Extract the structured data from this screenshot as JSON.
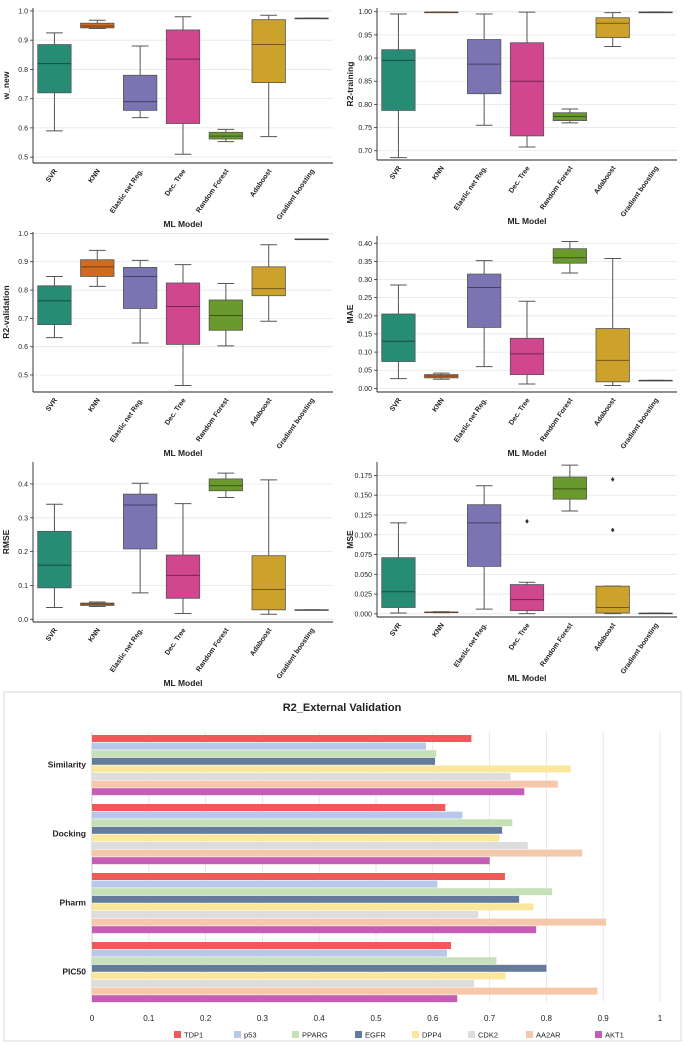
{
  "colors": {
    "SVR": "#268c76",
    "KNN": "#cf6a22",
    "Elastic net Reg.": "#7b74b3",
    "Dec. Tree": "#d0478f",
    "Random Forest": "#6a9a2d",
    "Adaboost": "#cca22b",
    "Gradient boosting": "#7a7a7a",
    "TDP1": "#ec5a5a",
    "p53": "#b9c7ea",
    "PPARG": "#c6e1b8",
    "EGFR": "#657b9b",
    "DPP4": "#fbe79c",
    "CDK2": "#dddddd",
    "AA2AR": "#f5c8ab",
    "AKT1": "#c55cb6"
  },
  "chart_data": [
    {
      "type": "box",
      "title": "",
      "xlabel": "ML Model",
      "ylabel": "w_new",
      "ylim": [
        0.48,
        1.01
      ],
      "yticks": [
        "0.5",
        "0.6",
        "0.7",
        "0.8",
        "0.9",
        "1.0"
      ],
      "categories": [
        "SVR",
        "KNN",
        "Elastic net Reg.",
        "Dec. Tree",
        "Random Forest",
        "Adaboost",
        "Gradient boosting"
      ],
      "boxes": [
        {
          "min": 0.59,
          "q1": 0.72,
          "median": 0.82,
          "q3": 0.885,
          "max": 0.925,
          "outliers": []
        },
        {
          "min": 0.94,
          "q1": 0.942,
          "median": 0.948,
          "q3": 0.958,
          "max": 0.968,
          "outliers": []
        },
        {
          "min": 0.635,
          "q1": 0.66,
          "median": 0.69,
          "q3": 0.78,
          "max": 0.88,
          "outliers": []
        },
        {
          "min": 0.51,
          "q1": 0.615,
          "median": 0.835,
          "q3": 0.935,
          "max": 0.98,
          "outliers": []
        },
        {
          "min": 0.553,
          "q1": 0.562,
          "median": 0.572,
          "q3": 0.585,
          "max": 0.595,
          "outliers": []
        },
        {
          "min": 0.57,
          "q1": 0.755,
          "median": 0.885,
          "q3": 0.97,
          "max": 0.985,
          "outliers": []
        },
        {
          "min": 0.975,
          "q1": 0.975,
          "median": 0.975,
          "q3": 0.975,
          "max": 0.975,
          "outliers": []
        }
      ]
    },
    {
      "type": "box",
      "title": "",
      "xlabel": "ML Model",
      "ylabel": "R2-training",
      "ylim": [
        0.68,
        1.008
      ],
      "yticks": [
        "0.70",
        "0.75",
        "0.80",
        "0.85",
        "0.90",
        "0.95",
        "1.00"
      ],
      "categories": [
        "SVR",
        "KNN",
        "Elastic net Reg.",
        "Dec. Tree",
        "Random Forest",
        "Adaboost",
        "Gradient boosting"
      ],
      "boxes": [
        {
          "min": 0.685,
          "q1": 0.787,
          "median": 0.895,
          "q3": 0.918,
          "max": 0.995,
          "outliers": []
        },
        {
          "min": 0.999,
          "q1": 0.999,
          "median": 0.999,
          "q3": 0.999,
          "max": 0.999,
          "outliers": []
        },
        {
          "min": 0.755,
          "q1": 0.823,
          "median": 0.887,
          "q3": 0.94,
          "max": 0.995,
          "outliers": []
        },
        {
          "min": 0.708,
          "q1": 0.732,
          "median": 0.85,
          "q3": 0.933,
          "max": 0.999,
          "outliers": []
        },
        {
          "min": 0.76,
          "q1": 0.765,
          "median": 0.774,
          "q3": 0.782,
          "max": 0.79,
          "outliers": []
        },
        {
          "min": 0.925,
          "q1": 0.944,
          "median": 0.975,
          "q3": 0.987,
          "max": 0.998,
          "outliers": []
        },
        {
          "min": 0.999,
          "q1": 0.999,
          "median": 0.999,
          "q3": 0.999,
          "max": 0.999,
          "outliers": []
        }
      ]
    },
    {
      "type": "box",
      "title": "",
      "xlabel": "ML Model",
      "ylabel": "R2-validation",
      "ylim": [
        0.44,
        1.005
      ],
      "yticks": [
        "0.5",
        "0.6",
        "0.7",
        "0.8",
        "0.9",
        "1.0"
      ],
      "categories": [
        "SVR",
        "KNN",
        "Elastic net Reg.",
        "Dec. Tree",
        "Random Forest",
        "Adaboost",
        "Gradient boosting"
      ],
      "boxes": [
        {
          "min": 0.632,
          "q1": 0.678,
          "median": 0.762,
          "q3": 0.815,
          "max": 0.848,
          "outliers": []
        },
        {
          "min": 0.813,
          "q1": 0.848,
          "median": 0.882,
          "q3": 0.907,
          "max": 0.94,
          "outliers": []
        },
        {
          "min": 0.613,
          "q1": 0.735,
          "median": 0.848,
          "q3": 0.88,
          "max": 0.905,
          "outliers": []
        },
        {
          "min": 0.463,
          "q1": 0.608,
          "median": 0.742,
          "q3": 0.825,
          "max": 0.89,
          "outliers": []
        },
        {
          "min": 0.603,
          "q1": 0.658,
          "median": 0.71,
          "q3": 0.765,
          "max": 0.823,
          "outliers": []
        },
        {
          "min": 0.69,
          "q1": 0.78,
          "median": 0.805,
          "q3": 0.882,
          "max": 0.96,
          "outliers": []
        },
        {
          "min": 0.98,
          "q1": 0.98,
          "median": 0.98,
          "q3": 0.98,
          "max": 0.98,
          "outliers": []
        }
      ]
    },
    {
      "type": "box",
      "title": "",
      "xlabel": "ML Model",
      "ylabel": "MAE",
      "ylim": [
        -0.01,
        0.42
      ],
      "yticks": [
        "0.00",
        "0.05",
        "0.10",
        "0.15",
        "0.20",
        "0.25",
        "0.30",
        "0.35",
        "0.40"
      ],
      "categories": [
        "SVR",
        "KNN",
        "Elastic net Reg.",
        "Dec. Tree",
        "Random Forest",
        "Adaboost",
        "Gradient boosting"
      ],
      "boxes": [
        {
          "min": 0.027,
          "q1": 0.074,
          "median": 0.13,
          "q3": 0.205,
          "max": 0.285,
          "outliers": []
        },
        {
          "min": 0.025,
          "q1": 0.029,
          "median": 0.034,
          "q3": 0.038,
          "max": 0.042,
          "outliers": []
        },
        {
          "min": 0.06,
          "q1": 0.168,
          "median": 0.278,
          "q3": 0.315,
          "max": 0.352,
          "outliers": []
        },
        {
          "min": 0.012,
          "q1": 0.038,
          "median": 0.095,
          "q3": 0.138,
          "max": 0.24,
          "outliers": []
        },
        {
          "min": 0.318,
          "q1": 0.345,
          "median": 0.36,
          "q3": 0.385,
          "max": 0.405,
          "outliers": []
        },
        {
          "min": 0.008,
          "q1": 0.018,
          "median": 0.077,
          "q3": 0.165,
          "max": 0.358,
          "outliers": []
        },
        {
          "min": 0.022,
          "q1": 0.022,
          "median": 0.022,
          "q3": 0.022,
          "max": 0.022,
          "outliers": []
        }
      ]
    },
    {
      "type": "box",
      "title": "",
      "xlabel": "ML Model",
      "ylabel": "RMSE",
      "ylim": [
        -0.008,
        0.465
      ],
      "yticks": [
        "0.0",
        "0.1",
        "0.2",
        "0.3",
        "0.4"
      ],
      "categories": [
        "SVR",
        "KNN",
        "Elastic net Reg.",
        "Dec. Tree",
        "Random Forest",
        "Adaboost",
        "Gradient boosting"
      ],
      "boxes": [
        {
          "min": 0.035,
          "q1": 0.093,
          "median": 0.16,
          "q3": 0.26,
          "max": 0.34,
          "outliers": []
        },
        {
          "min": 0.038,
          "q1": 0.041,
          "median": 0.045,
          "q3": 0.048,
          "max": 0.051,
          "outliers": []
        },
        {
          "min": 0.078,
          "q1": 0.208,
          "median": 0.338,
          "q3": 0.37,
          "max": 0.402,
          "outliers": []
        },
        {
          "min": 0.017,
          "q1": 0.062,
          "median": 0.13,
          "q3": 0.19,
          "max": 0.342,
          "outliers": []
        },
        {
          "min": 0.36,
          "q1": 0.38,
          "median": 0.395,
          "q3": 0.415,
          "max": 0.432,
          "outliers": []
        },
        {
          "min": 0.015,
          "q1": 0.028,
          "median": 0.088,
          "q3": 0.188,
          "max": 0.412,
          "outliers": []
        },
        {
          "min": 0.028,
          "q1": 0.028,
          "median": 0.028,
          "q3": 0.028,
          "max": 0.028,
          "outliers": []
        }
      ]
    },
    {
      "type": "box",
      "title": "",
      "xlabel": "ML Model",
      "ylabel": "MSE",
      "ylim": [
        -0.004,
        0.192
      ],
      "yticks": [
        "0.000",
        "0.025",
        "0.050",
        "0.075",
        "0.100",
        "0.125",
        "0.150",
        "0.175"
      ],
      "categories": [
        "SVR",
        "KNN",
        "Elastic net Reg.",
        "Dec. Tree",
        "Random Forest",
        "Adaboost",
        "Gradient boosting"
      ],
      "boxes": [
        {
          "min": 0.001,
          "q1": 0.008,
          "median": 0.028,
          "q3": 0.071,
          "max": 0.115,
          "outliers": []
        },
        {
          "min": 0.0015,
          "q1": 0.0017,
          "median": 0.002,
          "q3": 0.0023,
          "max": 0.0026,
          "outliers": []
        },
        {
          "min": 0.006,
          "q1": 0.06,
          "median": 0.115,
          "q3": 0.138,
          "max": 0.162,
          "outliers": []
        },
        {
          "min": 0.0003,
          "q1": 0.004,
          "median": 0.018,
          "q3": 0.037,
          "max": 0.04,
          "outliers": [
            0.117
          ]
        },
        {
          "min": 0.13,
          "q1": 0.145,
          "median": 0.158,
          "q3": 0.173,
          "max": 0.188,
          "outliers": []
        },
        {
          "min": 0.0002,
          "q1": 0.001,
          "median": 0.008,
          "q3": 0.035,
          "max": 0.035,
          "outliers": [
            0.17,
            0.106
          ]
        },
        {
          "min": 0.0008,
          "q1": 0.0008,
          "median": 0.0008,
          "q3": 0.0008,
          "max": 0.0008,
          "outliers": []
        }
      ]
    },
    {
      "type": "bar",
      "orientation": "horizontal",
      "title": "R2_External Validation",
      "xlabel": "",
      "ylabel": "",
      "xlim": [
        0,
        1
      ],
      "xticks": [
        "0",
        "0.1",
        "0.2",
        "0.3",
        "0.4",
        "0.5",
        "0.6",
        "0.7",
        "0.8",
        "0.9",
        "1"
      ],
      "categories": [
        "Similarity",
        "Docking",
        "Pharm",
        "PIC50"
      ],
      "series": [
        {
          "name": "TDP1",
          "values": [
            0.668,
            0.622,
            0.727,
            0.632
          ]
        },
        {
          "name": "p53",
          "values": [
            0.588,
            0.652,
            0.608,
            0.625
          ]
        },
        {
          "name": "PPARG",
          "values": [
            0.606,
            0.74,
            0.81,
            0.712
          ]
        },
        {
          "name": "EGFR",
          "values": [
            0.604,
            0.722,
            0.752,
            0.8
          ]
        },
        {
          "name": "DPP4",
          "values": [
            0.843,
            0.717,
            0.777,
            0.728
          ]
        },
        {
          "name": "CDK2",
          "values": [
            0.737,
            0.767,
            0.68,
            0.673
          ]
        },
        {
          "name": "AA2AR",
          "values": [
            0.82,
            0.863,
            0.905,
            0.89
          ]
        },
        {
          "name": "AKT1",
          "values": [
            0.761,
            0.7,
            0.782,
            0.643
          ]
        }
      ],
      "legend": "bottom"
    }
  ]
}
